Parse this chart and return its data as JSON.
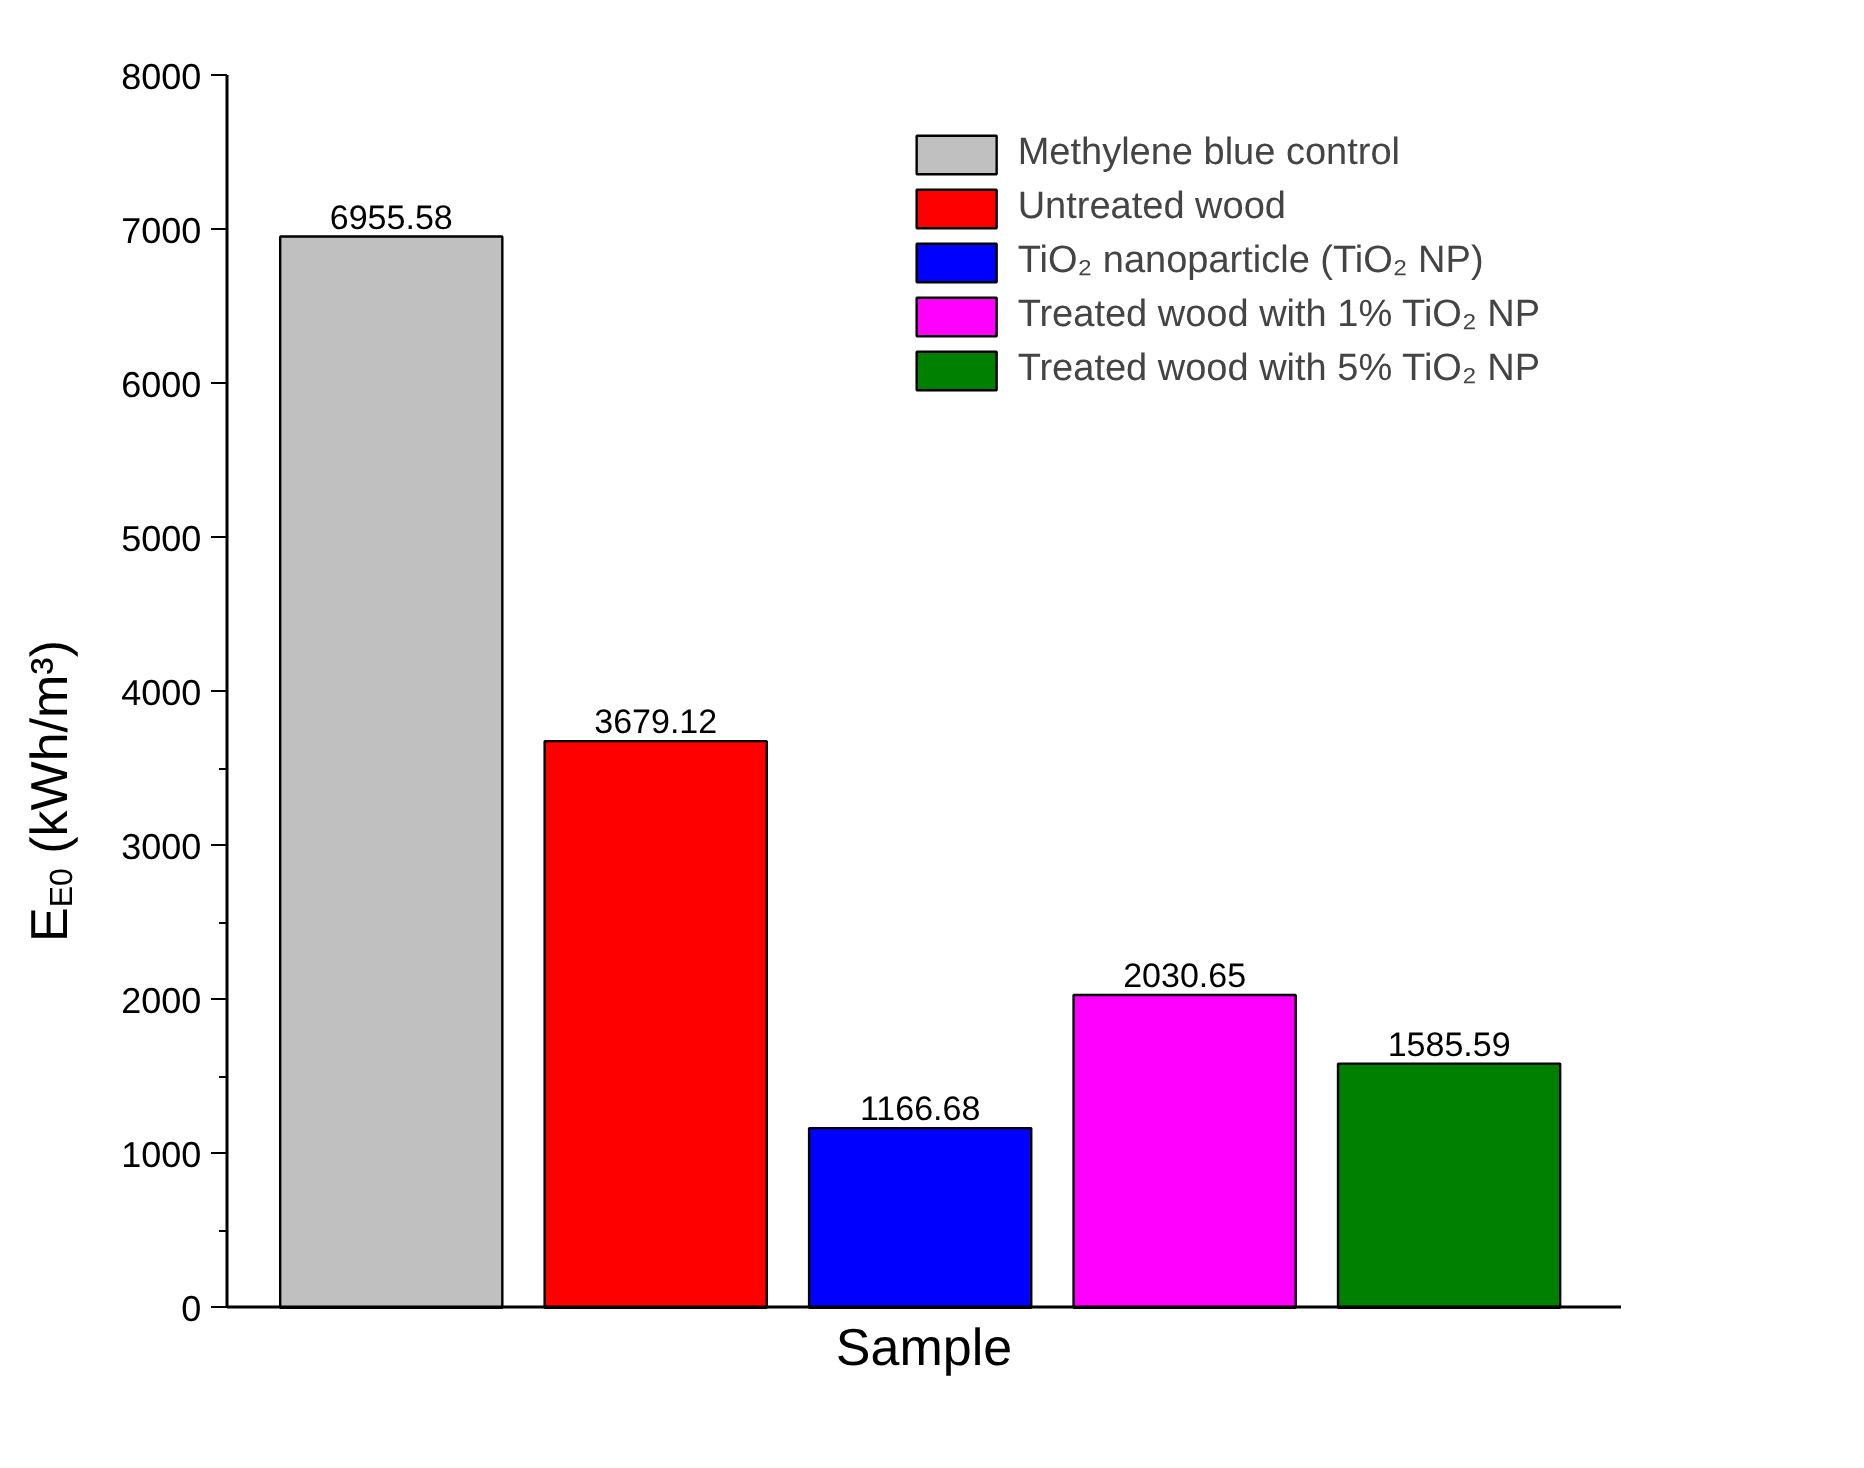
{
  "chart_data": {
    "type": "bar",
    "xlabel": "Sample",
    "ylabel": "E$_{E0}$ (kWh/m³)",
    "categories": [
      null,
      null,
      null,
      null,
      null
    ],
    "series": [
      {
        "name": "Methylene blue control",
        "color": "#c0c0c0",
        "values": [
          6955.58,
          null,
          null,
          null,
          null
        ]
      },
      {
        "name": "Untreated wood",
        "color": "#ff0000",
        "values": [
          null,
          3679.12,
          null,
          null,
          null
        ]
      },
      {
        "name": "TiO₂ nanoparticle (TiO₂ NP)",
        "color": "#0000ff",
        "values": [
          null,
          null,
          1166.68,
          null,
          null
        ]
      },
      {
        "name": "Treated wood with 1% TiO₂ NP",
        "color": "#ff00ff",
        "values": [
          null,
          null,
          null,
          2030.65,
          null
        ]
      },
      {
        "name": "Treated wood with 5% TiO₂ NP",
        "color": "#008000",
        "values": [
          null,
          null,
          null,
          null,
          1585.59
        ]
      }
    ],
    "ylim": [
      0,
      8000
    ],
    "yticks": [
      0,
      1000,
      2000,
      3000,
      4000,
      5000,
      6000,
      7000,
      8000
    ],
    "data_labels": true,
    "legend": "top right",
    "grid": false,
    "tick_labels": "y"
  }
}
